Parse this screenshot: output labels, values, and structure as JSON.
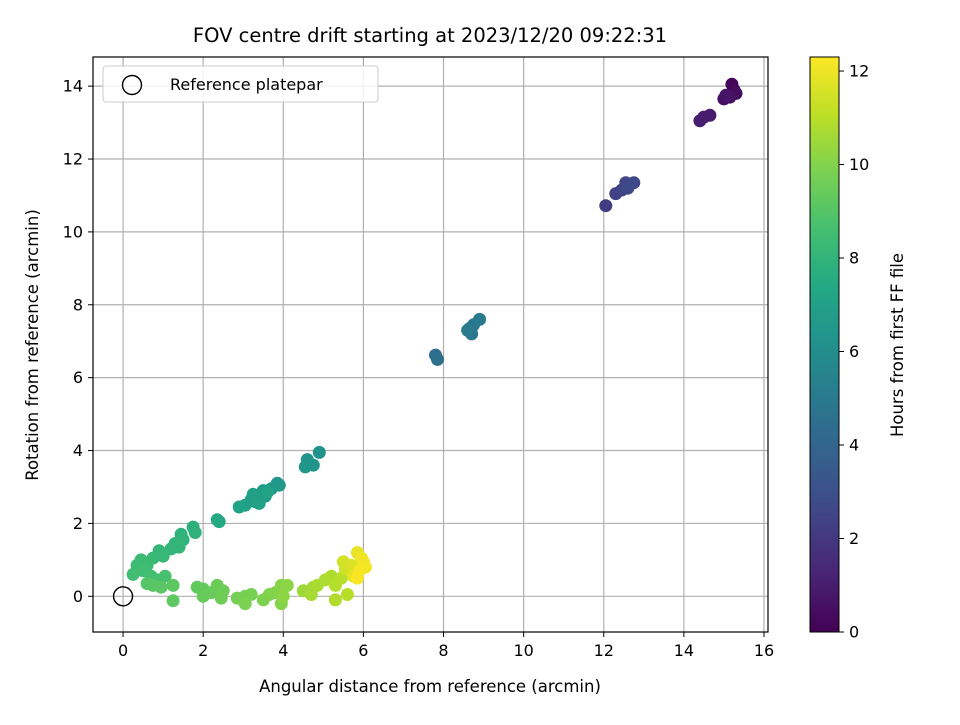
{
  "chart_data": {
    "type": "scatter",
    "title": "FOV centre drift starting at 2023/12/20 09:22:31",
    "xlabel": "Angular distance from reference (arcmin)",
    "ylabel": "Rotation from reference (arcmin)",
    "xlim": [
      -0.75,
      16.1
    ],
    "ylim": [
      -0.98,
      14.8
    ],
    "xticks": [
      0,
      2,
      4,
      6,
      8,
      10,
      12,
      14,
      16
    ],
    "yticks": [
      0,
      2,
      4,
      6,
      8,
      10,
      12,
      14
    ],
    "grid": true,
    "legend": {
      "location": "upper-left",
      "entries": [
        {
          "label": "Reference platepar",
          "marker": "open-circle"
        }
      ]
    },
    "reference_point": {
      "x": 0,
      "y": 0
    },
    "colorbar": {
      "label": "Hours from first FF file",
      "range": [
        0,
        12.3
      ],
      "ticks": [
        0,
        2,
        4,
        6,
        8,
        10,
        12
      ],
      "colormap": "viridis"
    },
    "points": [
      {
        "x": 15.2,
        "y": 14.05,
        "t": 0.1
      },
      {
        "x": 15.25,
        "y": 13.9,
        "t": 0.2
      },
      {
        "x": 15.1,
        "y": 13.75,
        "t": 0.3
      },
      {
        "x": 15.3,
        "y": 13.8,
        "t": 0.4
      },
      {
        "x": 15.0,
        "y": 13.65,
        "t": 0.5
      },
      {
        "x": 15.15,
        "y": 13.7,
        "t": 0.6
      },
      {
        "x": 15.05,
        "y": 13.75,
        "t": 0.7
      },
      {
        "x": 14.5,
        "y": 13.15,
        "t": 0.85
      },
      {
        "x": 14.65,
        "y": 13.2,
        "t": 0.95
      },
      {
        "x": 14.4,
        "y": 13.05,
        "t": 1.0
      },
      {
        "x": 12.05,
        "y": 10.72,
        "t": 2.2
      },
      {
        "x": 12.3,
        "y": 11.05,
        "t": 2.35
      },
      {
        "x": 12.45,
        "y": 11.15,
        "t": 2.45
      },
      {
        "x": 12.55,
        "y": 11.35,
        "t": 2.55
      },
      {
        "x": 12.75,
        "y": 11.35,
        "t": 2.65
      },
      {
        "x": 12.6,
        "y": 11.2,
        "t": 2.75
      },
      {
        "x": 7.8,
        "y": 6.62,
        "t": 4.4
      },
      {
        "x": 7.85,
        "y": 6.5,
        "t": 4.5
      },
      {
        "x": 8.65,
        "y": 7.35,
        "t": 4.7
      },
      {
        "x": 8.75,
        "y": 7.45,
        "t": 4.8
      },
      {
        "x": 8.7,
        "y": 7.2,
        "t": 4.9
      },
      {
        "x": 8.9,
        "y": 7.6,
        "t": 5.0
      },
      {
        "x": 8.6,
        "y": 7.3,
        "t": 5.1
      },
      {
        "x": 4.9,
        "y": 3.95,
        "t": 6.2
      },
      {
        "x": 4.6,
        "y": 3.75,
        "t": 6.3
      },
      {
        "x": 4.75,
        "y": 3.6,
        "t": 6.35
      },
      {
        "x": 4.55,
        "y": 3.55,
        "t": 6.4
      },
      {
        "x": 3.85,
        "y": 3.1,
        "t": 6.5
      },
      {
        "x": 3.9,
        "y": 3.05,
        "t": 6.55
      },
      {
        "x": 3.7,
        "y": 2.95,
        "t": 6.6
      },
      {
        "x": 3.55,
        "y": 2.75,
        "t": 6.7
      },
      {
        "x": 3.5,
        "y": 2.9,
        "t": 6.75
      },
      {
        "x": 3.3,
        "y": 2.6,
        "t": 6.8
      },
      {
        "x": 3.2,
        "y": 2.65,
        "t": 6.85
      },
      {
        "x": 3.05,
        "y": 2.5,
        "t": 6.9
      },
      {
        "x": 3.25,
        "y": 2.8,
        "t": 6.95
      },
      {
        "x": 3.4,
        "y": 2.55,
        "t": 7.0
      },
      {
        "x": 2.9,
        "y": 2.45,
        "t": 7.05
      },
      {
        "x": 3.6,
        "y": 2.85,
        "t": 7.1
      },
      {
        "x": 2.4,
        "y": 2.05,
        "t": 7.4
      },
      {
        "x": 2.35,
        "y": 2.1,
        "t": 7.45
      },
      {
        "x": 1.75,
        "y": 1.9,
        "t": 7.8
      },
      {
        "x": 1.8,
        "y": 1.75,
        "t": 7.85
      },
      {
        "x": 1.45,
        "y": 1.7,
        "t": 7.9
      },
      {
        "x": 1.5,
        "y": 1.55,
        "t": 7.95
      },
      {
        "x": 1.3,
        "y": 1.45,
        "t": 8.0
      },
      {
        "x": 1.2,
        "y": 1.3,
        "t": 8.05
      },
      {
        "x": 1.4,
        "y": 1.35,
        "t": 8.1
      },
      {
        "x": 0.9,
        "y": 1.25,
        "t": 8.15
      },
      {
        "x": 1.0,
        "y": 1.1,
        "t": 8.2
      },
      {
        "x": 0.75,
        "y": 1.05,
        "t": 8.25
      },
      {
        "x": 0.45,
        "y": 1.0,
        "t": 8.3
      },
      {
        "x": 0.6,
        "y": 0.85,
        "t": 8.35
      },
      {
        "x": 0.35,
        "y": 0.85,
        "t": 8.4
      },
      {
        "x": 0.5,
        "y": 0.7,
        "t": 8.45
      },
      {
        "x": 0.25,
        "y": 0.6,
        "t": 8.5
      },
      {
        "x": 0.7,
        "y": 0.55,
        "t": 8.55
      },
      {
        "x": 0.85,
        "y": 0.45,
        "t": 8.6
      },
      {
        "x": 1.05,
        "y": 0.55,
        "t": 8.65
      },
      {
        "x": 0.6,
        "y": 0.35,
        "t": 9.0
      },
      {
        "x": 0.75,
        "y": 0.3,
        "t": 9.05
      },
      {
        "x": 0.95,
        "y": 0.25,
        "t": 9.1
      },
      {
        "x": 1.25,
        "y": 0.3,
        "t": 9.15
      },
      {
        "x": 1.25,
        "y": -0.12,
        "t": 9.2
      },
      {
        "x": 1.85,
        "y": 0.25,
        "t": 9.3
      },
      {
        "x": 2.0,
        "y": 0.2,
        "t": 9.35
      },
      {
        "x": 2.0,
        "y": 0.0,
        "t": 9.4
      },
      {
        "x": 2.2,
        "y": 0.1,
        "t": 9.45
      },
      {
        "x": 2.35,
        "y": 0.3,
        "t": 9.5
      },
      {
        "x": 2.5,
        "y": 0.15,
        "t": 9.55
      },
      {
        "x": 2.45,
        "y": -0.05,
        "t": 9.6
      },
      {
        "x": 2.85,
        "y": -0.05,
        "t": 9.7
      },
      {
        "x": 3.05,
        "y": 0.0,
        "t": 9.75
      },
      {
        "x": 3.2,
        "y": 0.05,
        "t": 9.8
      },
      {
        "x": 3.05,
        "y": -0.2,
        "t": 9.85
      },
      {
        "x": 3.5,
        "y": -0.1,
        "t": 9.9
      },
      {
        "x": 3.65,
        "y": 0.05,
        "t": 9.95
      },
      {
        "x": 3.8,
        "y": 0.1,
        "t": 10.0
      },
      {
        "x": 3.95,
        "y": -0.2,
        "t": 10.05
      },
      {
        "x": 3.95,
        "y": 0.3,
        "t": 10.1
      },
      {
        "x": 4.1,
        "y": 0.3,
        "t": 10.15
      },
      {
        "x": 4.0,
        "y": 0.0,
        "t": 10.2
      },
      {
        "x": 4.5,
        "y": 0.15,
        "t": 10.5
      },
      {
        "x": 4.75,
        "y": 0.25,
        "t": 10.6
      },
      {
        "x": 4.7,
        "y": 0.05,
        "t": 10.65
      },
      {
        "x": 4.85,
        "y": 0.3,
        "t": 10.7
      },
      {
        "x": 5.05,
        "y": 0.45,
        "t": 10.75
      },
      {
        "x": 5.2,
        "y": 0.55,
        "t": 10.8
      },
      {
        "x": 5.3,
        "y": -0.1,
        "t": 10.85
      },
      {
        "x": 5.3,
        "y": 0.3,
        "t": 10.9
      },
      {
        "x": 5.45,
        "y": 0.5,
        "t": 10.95
      },
      {
        "x": 5.6,
        "y": 0.05,
        "t": 11.0
      },
      {
        "x": 5.55,
        "y": 0.75,
        "t": 11.4
      },
      {
        "x": 5.5,
        "y": 0.95,
        "t": 11.5
      },
      {
        "x": 5.7,
        "y": 0.85,
        "t": 11.6
      },
      {
        "x": 5.8,
        "y": 0.65,
        "t": 11.7
      },
      {
        "x": 5.75,
        "y": 0.55,
        "t": 11.8
      },
      {
        "x": 5.85,
        "y": 1.2,
        "t": 11.9
      },
      {
        "x": 5.95,
        "y": 1.05,
        "t": 12.0
      },
      {
        "x": 6.0,
        "y": 0.95,
        "t": 12.05
      },
      {
        "x": 6.05,
        "y": 0.8,
        "t": 12.1
      },
      {
        "x": 5.9,
        "y": 0.7,
        "t": 12.15
      },
      {
        "x": 5.85,
        "y": 0.5,
        "t": 12.2
      }
    ]
  }
}
